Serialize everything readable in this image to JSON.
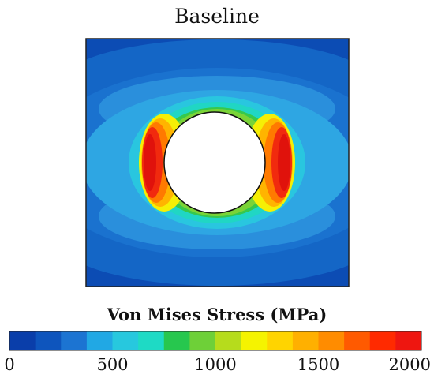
{
  "title": "Baseline",
  "colorbar": {
    "label": "Von Mises Stress (MPa)",
    "min": 0,
    "max": 2000,
    "ticks": [
      "0",
      "500",
      "1000",
      "1500",
      "2000"
    ],
    "tick_values": [
      0,
      500,
      1000,
      1500,
      2000
    ],
    "colors": [
      "#0a3eaa",
      "#0e55bd",
      "#1c74d2",
      "#21a8e4",
      "#27c8de",
      "#1edac5",
      "#27c74e",
      "#6ed038",
      "#b6dc1c",
      "#f5f300",
      "#ffd400",
      "#ffb000",
      "#ff8c00",
      "#ff5a00",
      "#ff2a00",
      "#ee1610"
    ]
  },
  "chart_data": {
    "type": "heatmap",
    "title": "Baseline",
    "colorbar_label": "Von Mises Stress (MPa)",
    "range": [
      0,
      2000
    ]
  }
}
